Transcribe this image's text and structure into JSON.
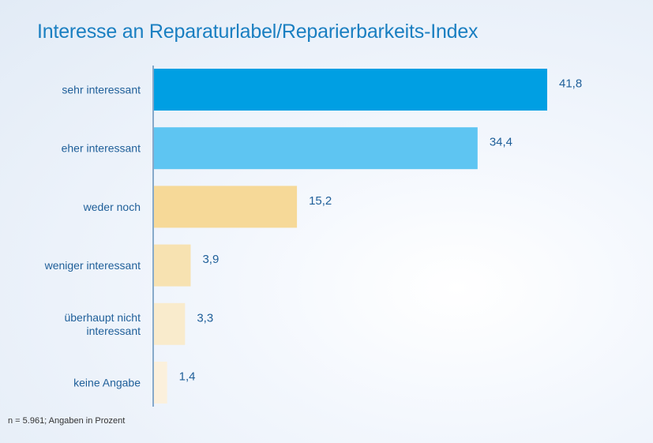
{
  "chart_data": {
    "type": "bar",
    "orientation": "horizontal",
    "title": "Interesse an Reparaturlabel/Reparierbarkeits-Index",
    "categories": [
      "sehr interessant",
      "eher interessant",
      "weder noch",
      "weniger interessant",
      "überhaupt nicht interessant",
      "keine Angabe"
    ],
    "category_lines": [
      [
        "sehr interessant"
      ],
      [
        "eher interessant"
      ],
      [
        "weder noch"
      ],
      [
        "weniger interessant"
      ],
      [
        "überhaupt nicht",
        "interessant"
      ],
      [
        "keine Angabe"
      ]
    ],
    "values": [
      41.8,
      34.4,
      15.2,
      3.9,
      3.3,
      1.4
    ],
    "value_labels": [
      "41,8",
      "34,4",
      "15,2",
      "3,9",
      "3,3",
      "1,4"
    ],
    "bar_colors": [
      "#009fe3",
      "#5ec5f2",
      "#f6d998",
      "#f7e2b1",
      "#f9ebcc",
      "#fbf0dc"
    ],
    "xlim": [
      0,
      41.8
    ],
    "grid": false,
    "legend": "none",
    "footnote": "n = 5.961; Angaben in Prozent"
  }
}
